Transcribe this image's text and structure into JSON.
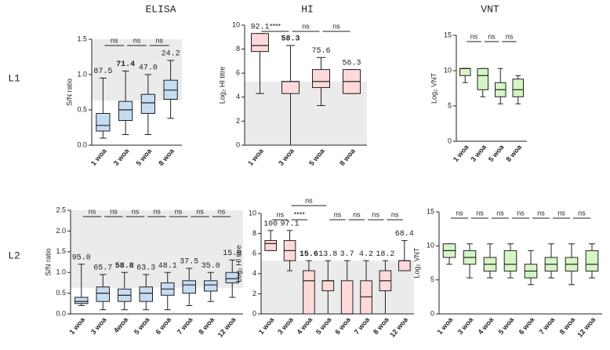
{
  "columns": [
    "ELISA",
    "HI",
    "VNT"
  ],
  "rows": [
    "L1",
    "L2"
  ],
  "chart_data": [
    {
      "type": "box",
      "ylabel": "S/N ratio",
      "color": "#c6dcf2",
      "cutoff": 0.63,
      "shade": "above",
      "categories": [
        "1 woa",
        "3 woa",
        "5 woa",
        "8 woa"
      ],
      "boxes": [
        {
          "min": 0.1,
          "q1": 0.2,
          "median": 0.28,
          "q3": 0.45,
          "max": 0.95
        },
        {
          "min": 0.15,
          "q1": 0.35,
          "median": 0.5,
          "q3": 0.62,
          "max": 1.05
        },
        {
          "min": 0.15,
          "q1": 0.45,
          "median": 0.6,
          "q3": 0.72,
          "max": 1.0
        },
        {
          "min": 0.38,
          "q1": 0.65,
          "median": 0.78,
          "q3": 0.92,
          "max": 1.2
        }
      ],
      "ylim": [
        0,
        1.5
      ],
      "yticks": [
        {
          "value": 0,
          "label": "0.0"
        },
        0.5,
        {
          "value": 1,
          "label": "1.0"
        },
        1.5
      ],
      "annotations": [
        {
          "text": "87.5",
          "color": "#333"
        },
        {
          "text": "71.4",
          "color": "#e02020"
        },
        {
          "text": "47.0",
          "color": "#333"
        },
        {
          "text": "24.2",
          "color": "#333"
        }
      ],
      "significance": [
        {
          "label": "ns",
          "pair": [
            "1 woa",
            "3 woa"
          ]
        },
        {
          "label": "ns",
          "pair": [
            "3 woa",
            "5 woa"
          ]
        },
        {
          "label": "ns",
          "pair": [
            "5 woa",
            "8 woa"
          ]
        }
      ]
    },
    {
      "type": "box",
      "ylabel": "Log₂ HI titre",
      "color": "#fdd9d9",
      "cutoff": 5.3,
      "shade": "below",
      "categories": [
        "1 woa",
        "3 woa",
        "5 woa",
        "8 woa"
      ],
      "boxes": [
        {
          "min": 4.3,
          "q1": 7.8,
          "median": 8.3,
          "q3": 9.3,
          "max": 9.3
        },
        {
          "min": 0,
          "q1": 4.3,
          "median": 5.3,
          "q3": 5.3,
          "max": 8.3
        },
        {
          "min": 3.3,
          "q1": 4.8,
          "median": 5.3,
          "q3": 6.3,
          "max": 7.3
        },
        {
          "min": 4.3,
          "q1": 4.3,
          "median": 5.3,
          "q3": 6.3,
          "max": 6.3
        }
      ],
      "ylim": [
        0,
        10
      ],
      "yticks": [
        0,
        2,
        4,
        6,
        8,
        10
      ],
      "annotations": [
        {
          "text": "92.1",
          "color": "#333"
        },
        {
          "text": "58.3",
          "color": "#e02020"
        },
        {
          "text": "75.6",
          "color": "#333"
        },
        {
          "text": "56.3",
          "color": "#333"
        }
      ],
      "significance": [
        {
          "label": "****",
          "pair": [
            "1 woa",
            "3 woa"
          ]
        },
        {
          "label": "ns",
          "pair": [
            "3 woa",
            "5 woa"
          ]
        },
        {
          "label": "ns",
          "pair": [
            "5 woa",
            "8 woa"
          ]
        }
      ]
    },
    {
      "type": "box",
      "ylabel": "Log₂ VNT",
      "color": "#d6f5c6",
      "categories": [
        "1 woa",
        "3 woa",
        "5 woa",
        "8 woa"
      ],
      "boxes": [
        {
          "min": 8.3,
          "q1": 9.3,
          "median": 10.3,
          "q3": 10.3,
          "max": 10.3
        },
        {
          "min": 6.3,
          "q1": 7.3,
          "median": 9.3,
          "q3": 10.3,
          "max": 10.3
        },
        {
          "min": 5.3,
          "q1": 6.3,
          "median": 7.3,
          "q3": 8.3,
          "max": 10.3
        },
        {
          "min": 5.3,
          "q1": 6.3,
          "median": 7.3,
          "q3": 8.8,
          "max": 9.3
        }
      ],
      "ylim": [
        0,
        15
      ],
      "yticks": [
        0,
        5,
        10,
        15
      ],
      "annotations": [],
      "significance": [
        {
          "label": "ns",
          "pair": [
            "1 woa",
            "3 woa"
          ]
        },
        {
          "label": "ns",
          "pair": [
            "3 woa",
            "5 woa"
          ]
        },
        {
          "label": "ns",
          "pair": [
            "5 woa",
            "8 woa"
          ]
        }
      ]
    },
    {
      "type": "box",
      "ylabel": "S/N ratio",
      "color": "#c6dcf2",
      "cutoff": 0.63,
      "shade": "above",
      "categories": [
        "1 woa",
        "3 woa",
        "4woa",
        "5 woa",
        "6 woa",
        "7 woa",
        "8 woa",
        "12 woa"
      ],
      "boxes": [
        {
          "min": 0.2,
          "q1": 0.25,
          "median": 0.3,
          "q3": 0.4,
          "max": 1.2
        },
        {
          "min": 0.1,
          "q1": 0.3,
          "median": 0.5,
          "q3": 0.65,
          "max": 0.95
        },
        {
          "min": 0.1,
          "q1": 0.3,
          "median": 0.45,
          "q3": 0.6,
          "max": 1.0
        },
        {
          "min": 0.1,
          "q1": 0.3,
          "median": 0.5,
          "q3": 0.65,
          "max": 0.95
        },
        {
          "min": 0.1,
          "q1": 0.45,
          "median": 0.6,
          "q3": 0.75,
          "max": 1.0
        },
        {
          "min": 0.2,
          "q1": 0.5,
          "median": 0.7,
          "q3": 0.8,
          "max": 1.1
        },
        {
          "min": 0.3,
          "q1": 0.55,
          "median": 0.7,
          "q3": 0.8,
          "max": 1.0
        },
        {
          "min": 0.4,
          "q1": 0.75,
          "median": 0.85,
          "q3": 1.0,
          "max": 1.3
        }
      ],
      "ylim": [
        0,
        2.5
      ],
      "yticks": [
        {
          "value": 0,
          "label": "0.0"
        },
        0.5,
        {
          "value": 1,
          "label": "1.0"
        },
        1.5,
        {
          "value": 2,
          "label": "2.0"
        },
        2.5
      ],
      "annotations": [
        {
          "text": "95.0",
          "color": "#333"
        },
        {
          "text": "65.7",
          "color": "#333"
        },
        {
          "text": "58.8",
          "color": "#e02020"
        },
        {
          "text": "63.3",
          "color": "#333"
        },
        {
          "text": "48.1",
          "color": "#333"
        },
        {
          "text": "37.5",
          "color": "#333"
        },
        {
          "text": "35.0",
          "color": "#333"
        },
        {
          "text": "15.8",
          "color": "#333"
        }
      ],
      "significance": [
        {
          "label": "ns",
          "pair": [
            "1 woa",
            "3 woa"
          ]
        },
        {
          "label": "ns",
          "pair": [
            "3 woa",
            "4woa"
          ]
        },
        {
          "label": "ns",
          "pair": [
            "4woa",
            "5 woa"
          ]
        },
        {
          "label": "ns",
          "pair": [
            "5 woa",
            "6 woa"
          ]
        },
        {
          "label": "ns",
          "pair": [
            "6 woa",
            "7 woa"
          ]
        },
        {
          "label": "ns",
          "pair": [
            "7 woa",
            "8 woa"
          ]
        },
        {
          "label": "ns",
          "pair": [
            "8 woa",
            "12 woa"
          ]
        }
      ]
    },
    {
      "type": "box",
      "ylabel": "Log₂ HI titre",
      "color": "#fdd9d9",
      "cutoff": 5.3,
      "shade": "below",
      "categories": [
        "1 woa",
        "3 woa",
        "4 woa",
        "5 woa",
        "6 woa",
        "7 woa",
        "8 woa",
        "12 woa"
      ],
      "boxes": [
        {
          "min": 6.3,
          "q1": 6.3,
          "median": 7,
          "q3": 7.3,
          "max": 8.3
        },
        {
          "min": 4.3,
          "q1": 5.3,
          "median": 6.3,
          "q3": 7.3,
          "max": 8.3
        },
        {
          "min": 0,
          "q1": 0,
          "median": 3.3,
          "q3": 4.3,
          "max": 5.3
        },
        {
          "min": 0,
          "q1": 2.3,
          "median": 3.3,
          "q3": 3.3,
          "max": 5.3
        },
        {
          "min": 0,
          "q1": 0,
          "median": 0,
          "q3": 3.3,
          "max": 5.3
        },
        {
          "min": 0,
          "q1": 0,
          "median": 1.7,
          "q3": 3.3,
          "max": 5.3
        },
        {
          "min": 0,
          "q1": 2.3,
          "median": 3.3,
          "q3": 4.3,
          "max": 5.3
        },
        {
          "min": 4.3,
          "q1": 4.3,
          "median": 5.3,
          "q3": 5.3,
          "max": 7.3
        }
      ],
      "ylim": [
        0,
        10
      ],
      "yticks": [
        0,
        2,
        4,
        6,
        8,
        10
      ],
      "annotations": [
        {
          "text": "100",
          "color": "#333"
        },
        {
          "text": "97.1",
          "color": "#333"
        },
        {
          "text": "15.6",
          "color": "#e02020"
        },
        {
          "text": "13.8",
          "color": "#333"
        },
        {
          "text": "3.7",
          "color": "#333"
        },
        {
          "text": "4.2",
          "color": "#333"
        },
        {
          "text": "18.2",
          "color": "#333"
        },
        {
          "text": "68.4",
          "color": "#333"
        }
      ],
      "significance": [
        {
          "label": "ns",
          "pair": [
            "1 woa",
            "3 woa"
          ]
        },
        {
          "label": "****",
          "pair": [
            "3 woa",
            "4 woa"
          ]
        },
        {
          "label": "ns",
          "pair": [
            "3 woa",
            "5 woa"
          ]
        },
        {
          "label": "ns",
          "pair": [
            "5 woa",
            "6 woa"
          ]
        },
        {
          "label": "ns",
          "pair": [
            "6 woa",
            "7 woa"
          ]
        },
        {
          "label": "ns",
          "pair": [
            "7 woa",
            "8 woa"
          ]
        },
        {
          "label": "ns",
          "pair": [
            "8 woa",
            "12 woa"
          ]
        }
      ]
    },
    {
      "type": "box",
      "ylabel": "Log₂ VNT",
      "color": "#d6f5c6",
      "categories": [
        "1 woa",
        "3 woa",
        "4 woa",
        "5 woa",
        "6 woa",
        "7 woa",
        "8 woa",
        "12 woa"
      ],
      "boxes": [
        {
          "min": 7.3,
          "q1": 8.3,
          "median": 9.3,
          "q3": 10.3,
          "max": 10.3
        },
        {
          "min": 5.3,
          "q1": 7.3,
          "median": 8.3,
          "q3": 9.3,
          "max": 10.3
        },
        {
          "min": 5.3,
          "q1": 6.3,
          "median": 7.3,
          "q3": 8.3,
          "max": 10.3
        },
        {
          "min": 5.3,
          "q1": 6.3,
          "median": 7.3,
          "q3": 9.3,
          "max": 10.3
        },
        {
          "min": 4.3,
          "q1": 5.3,
          "median": 6.3,
          "q3": 7.3,
          "max": 9.3
        },
        {
          "min": 5.3,
          "q1": 6.3,
          "median": 7.3,
          "q3": 8.3,
          "max": 10.3
        },
        {
          "min": 4.3,
          "q1": 6.3,
          "median": 7.3,
          "q3": 8.3,
          "max": 10.3
        },
        {
          "min": 5.3,
          "q1": 6.3,
          "median": 7.3,
          "q3": 9.3,
          "max": 10.3
        }
      ],
      "ylim": [
        0,
        15
      ],
      "yticks": [
        0,
        5,
        10,
        15
      ],
      "annotations": [],
      "significance": [
        {
          "label": "ns",
          "pair": [
            "1 woa",
            "3 woa"
          ]
        },
        {
          "label": "ns",
          "pair": [
            "3 woa",
            "4 woa"
          ]
        },
        {
          "label": "ns",
          "pair": [
            "4 woa",
            "5 woa"
          ]
        },
        {
          "label": "ns",
          "pair": [
            "5 woa",
            "6 woa"
          ]
        },
        {
          "label": "ns",
          "pair": [
            "6 woa",
            "7 woa"
          ]
        },
        {
          "label": "ns",
          "pair": [
            "7 woa",
            "8 woa"
          ]
        },
        {
          "label": "ns",
          "pair": [
            "8 woa",
            "12 woa"
          ]
        }
      ]
    }
  ]
}
